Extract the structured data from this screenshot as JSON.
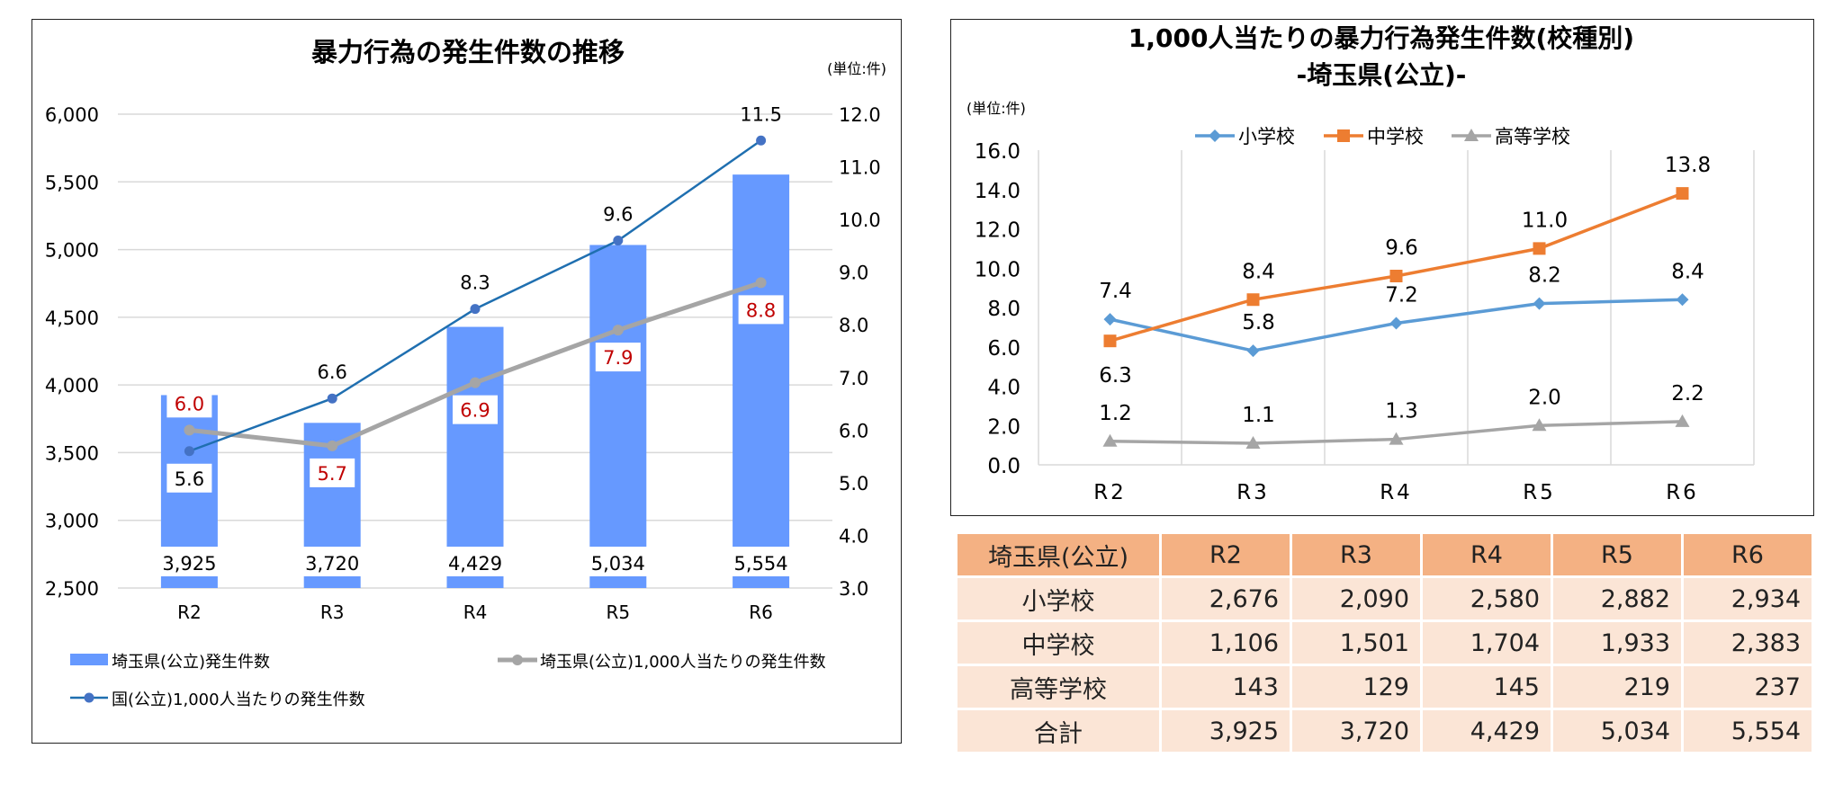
{
  "chart_data": [
    {
      "type": "bar",
      "title": "暴力行為の発生件数の推移",
      "unit_label": "(単位:件)",
      "categories": [
        "R2",
        "R3",
        "R4",
        "R5",
        "R6"
      ],
      "ylim": [
        2500,
        6000
      ],
      "yticks": [
        "2,500",
        "3,000",
        "3,500",
        "4,000",
        "4,500",
        "5,000",
        "5,500",
        "6,000"
      ],
      "y2lim": [
        3.0,
        12.0
      ],
      "y2ticks": [
        "3.0",
        "4.0",
        "5.0",
        "6.0",
        "7.0",
        "8.0",
        "9.0",
        "10.0",
        "11.0",
        "12.0"
      ],
      "series": [
        {
          "name": "埼玉県(公立)発生件数",
          "kind": "bar",
          "axis": "left",
          "color": "#6699ff",
          "values": [
            3925,
            3720,
            4429,
            5034,
            5554
          ],
          "labels": [
            "3,925",
            "3,720",
            "4,429",
            "5,034",
            "5,554"
          ]
        },
        {
          "name": "埼玉県(公立)1,000人当たりの発生件数",
          "kind": "line",
          "axis": "right",
          "color": "#a5a5a5",
          "label_color": "#c00000",
          "values": [
            6.0,
            5.7,
            6.9,
            7.9,
            8.8
          ],
          "labels": [
            "6.0",
            "5.7",
            "6.9",
            "7.9",
            "8.8"
          ],
          "label_side": [
            "above",
            "below",
            "below",
            "below",
            "below"
          ]
        },
        {
          "name": "国(公立)1,000人当たりの発生件数",
          "kind": "line",
          "axis": "right",
          "color": "#1f6fb0",
          "marker_color": "#4472c4",
          "values": [
            5.6,
            6.6,
            8.3,
            9.6,
            11.5
          ],
          "labels": [
            "5.6",
            "6.6",
            "8.3",
            "9.6",
            "11.5"
          ],
          "label_side": [
            "below",
            "above",
            "above",
            "above",
            "above"
          ]
        }
      ]
    },
    {
      "type": "line",
      "title": "1,000人当たりの暴力行為発生件数(校種別)",
      "subtitle": "-埼玉県(公立)-",
      "unit_label": "(単位:件)",
      "categories": [
        "R2",
        "R3",
        "R4",
        "R5",
        "R6"
      ],
      "ylim": [
        0,
        16
      ],
      "yticks": [
        "0.0",
        "2.0",
        "4.0",
        "6.0",
        "8.0",
        "10.0",
        "12.0",
        "14.0",
        "16.0"
      ],
      "legend": "top",
      "series": [
        {
          "name": "小学校",
          "color": "#5b9bd5",
          "marker": "diamond",
          "values": [
            7.4,
            5.8,
            7.2,
            8.2,
            8.4
          ],
          "labels": [
            "7.4",
            "5.8",
            "7.2",
            "8.2",
            "8.4"
          ],
          "label_side": [
            "above",
            "above",
            "above",
            "above",
            "above"
          ]
        },
        {
          "name": "中学校",
          "color": "#ed7d31",
          "marker": "square",
          "values": [
            6.3,
            8.4,
            9.6,
            11.0,
            13.8
          ],
          "labels": [
            "6.3",
            "8.4",
            "9.6",
            "11.0",
            "13.8"
          ],
          "label_side": [
            "below",
            "above",
            "above",
            "above",
            "above"
          ]
        },
        {
          "name": "高等学校",
          "color": "#a5a5a5",
          "marker": "triangle",
          "values": [
            1.2,
            1.1,
            1.3,
            2.0,
            2.2
          ],
          "labels": [
            "1.2",
            "1.1",
            "1.3",
            "2.0",
            "2.2"
          ],
          "label_side": [
            "above",
            "above",
            "above",
            "above",
            "above"
          ]
        }
      ]
    }
  ],
  "table": {
    "header": [
      "埼玉県(公立)",
      "R2",
      "R3",
      "R4",
      "R5",
      "R6"
    ],
    "rows": [
      {
        "label": "小学校",
        "values": [
          "2,676",
          "2,090",
          "2,580",
          "2,882",
          "2,934"
        ]
      },
      {
        "label": "中学校",
        "values": [
          "1,106",
          "1,501",
          "1,704",
          "1,933",
          "2,383"
        ]
      },
      {
        "label": "高等学校",
        "values": [
          "143",
          "129",
          "145",
          "219",
          "237"
        ]
      },
      {
        "label": "合計",
        "values": [
          "3,925",
          "3,720",
          "4,429",
          "5,034",
          "5,554"
        ]
      }
    ]
  }
}
